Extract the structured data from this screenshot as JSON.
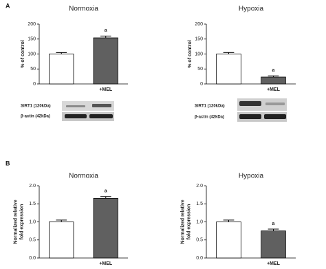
{
  "panel_labels": [
    "A",
    "B"
  ],
  "blots": [
    {
      "labels": [
        "SIRT1 (120kDa)",
        "β-actin (42kDa)"
      ]
    },
    {
      "labels": [
        "SIRT1 (120kDa)",
        "β-actin (42kDa)"
      ]
    }
  ],
  "chart_data": [
    {
      "type": "bar",
      "title": "Normoxia",
      "ylabel": "% of control",
      "categories": [
        null,
        "+MEL"
      ],
      "values": [
        100,
        154
      ],
      "errors": [
        5,
        6
      ],
      "annotations": [
        null,
        "a"
      ],
      "colors": [
        "#ffffff",
        "#606060"
      ],
      "ylim": [
        0,
        200
      ],
      "yticks": [
        0,
        50,
        100,
        150,
        200
      ]
    },
    {
      "type": "bar",
      "title": "Hypoxia",
      "ylabel": "% of control",
      "categories": [
        null,
        "+MEL"
      ],
      "values": [
        100,
        23
      ],
      "errors": [
        5,
        4
      ],
      "annotations": [
        null,
        "a"
      ],
      "colors": [
        "#ffffff",
        "#606060"
      ],
      "ylim": [
        0,
        200
      ],
      "yticks": [
        0,
        50,
        100,
        150,
        200
      ]
    },
    {
      "type": "bar",
      "title": "Normoxia",
      "ylabel": [
        "Normalized relative",
        "fold expression"
      ],
      "categories": [
        null,
        "+MEL"
      ],
      "values": [
        1.0,
        1.65
      ],
      "errors": [
        0.05,
        0.05
      ],
      "annotations": [
        null,
        "a"
      ],
      "colors": [
        "#ffffff",
        "#606060"
      ],
      "ylim": [
        0,
        2
      ],
      "yticks": [
        {
          "value": 0,
          "label": "0.0"
        },
        {
          "value": 0.5,
          "label": "0.5"
        },
        {
          "value": 1,
          "label": "1.0"
        },
        {
          "value": 1.5,
          "label": "1.5"
        },
        {
          "value": 2,
          "label": "2.0"
        }
      ]
    },
    {
      "type": "bar",
      "title": "Hypoxia",
      "ylabel": [
        "Normalized relative",
        "fold expression"
      ],
      "categories": [
        null,
        "+MEL"
      ],
      "values": [
        1.0,
        0.75
      ],
      "errors": [
        0.05,
        0.05
      ],
      "annotations": [
        null,
        "a"
      ],
      "colors": [
        "#ffffff",
        "#606060"
      ],
      "ylim": [
        0,
        2
      ],
      "yticks": [
        {
          "value": 0,
          "label": "0.0"
        },
        {
          "value": 0.5,
          "label": "0.5"
        },
        {
          "value": 1,
          "label": "1.0"
        },
        {
          "value": 1.5,
          "label": "1.5"
        },
        {
          "value": 2,
          "label": "2.0"
        }
      ]
    }
  ]
}
